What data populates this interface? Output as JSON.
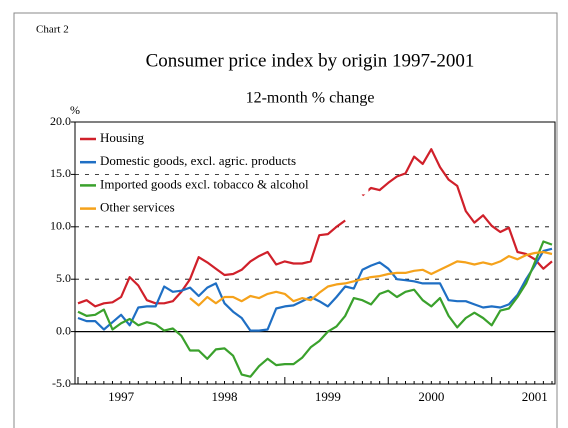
{
  "chart_data": {
    "type": "line",
    "label": "Chart 2",
    "title": "Consumer price index by origin 1997-2001",
    "subtitle": "12-month % change",
    "y_unit": "%",
    "categories": [
      null,
      null,
      null,
      null,
      null,
      "1997",
      null,
      null,
      null,
      null,
      null,
      null,
      null,
      null,
      null,
      null,
      null,
      "1998",
      null,
      null,
      null,
      null,
      null,
      null,
      null,
      null,
      null,
      null,
      null,
      "1999",
      null,
      null,
      null,
      null,
      null,
      null,
      null,
      null,
      null,
      null,
      null,
      "2000",
      null,
      null,
      null,
      null,
      null,
      null,
      null,
      null,
      null,
      null,
      null,
      "2001",
      null,
      null
    ],
    "ylim": [
      -5,
      20
    ],
    "yticks": [
      {
        "value": -5,
        "label": "-5.0"
      },
      {
        "value": 0,
        "label": "0.0"
      },
      {
        "value": 5,
        "label": "5.0"
      },
      {
        "value": 10,
        "label": "10.0"
      },
      {
        "value": 15,
        "label": "15.0"
      },
      {
        "value": 20,
        "label": "20.0"
      }
    ],
    "grid": true,
    "legend": "upper left",
    "series": [
      {
        "name": "Housing",
        "color": "#d0202a",
        "values": [
          2.7,
          3.0,
          2.4,
          2.7,
          2.8,
          3.3,
          5.2,
          4.4,
          3.0,
          2.7,
          2.7,
          2.9,
          3.8,
          5.0,
          7.1,
          6.6,
          6.0,
          5.4,
          5.5,
          5.9,
          6.7,
          7.2,
          7.6,
          6.4,
          6.7,
          6.5,
          6.5,
          6.7,
          9.2,
          9.3,
          10.0,
          10.6,
          null,
          13.0,
          13.7,
          13.5,
          14.2,
          14.8,
          15.1,
          16.7,
          16.0,
          17.4,
          15.7,
          14.5,
          13.9,
          11.5,
          10.4,
          11.1,
          10.1,
          9.5,
          9.9,
          7.6,
          7.4,
          6.9,
          6.0,
          6.7
        ]
      },
      {
        "name": "Domestic goods, excl. agric. products",
        "color": "#1f6fc4",
        "values": [
          1.3,
          1.0,
          1.0,
          0.2,
          0.9,
          1.6,
          0.6,
          2.3,
          2.4,
          2.4,
          4.3,
          3.8,
          3.9,
          4.2,
          3.4,
          4.2,
          4.6,
          2.7,
          1.9,
          1.3,
          0.1,
          0.1,
          0.2,
          2.2,
          2.4,
          2.5,
          2.9,
          3.3,
          2.9,
          2.4,
          3.3,
          4.3,
          4.1,
          5.9,
          6.3,
          6.6,
          6.0,
          5.0,
          4.9,
          4.8,
          4.6,
          4.6,
          4.6,
          3.0,
          2.9,
          2.9,
          2.6,
          2.3,
          2.4,
          2.3,
          2.6,
          3.5,
          5.0,
          6.3,
          7.7,
          7.9
        ]
      },
      {
        "name": "Imported goods excl. tobacco & alcohol",
        "color": "#3aa12c",
        "values": [
          1.9,
          1.5,
          1.6,
          2.1,
          0.2,
          0.8,
          1.2,
          0.6,
          0.9,
          0.7,
          0.1,
          0.3,
          -0.4,
          -1.8,
          -1.8,
          -2.6,
          -1.7,
          -1.6,
          -2.3,
          -4.1,
          -4.3,
          -3.3,
          -2.6,
          -3.2,
          -3.1,
          -3.1,
          -2.5,
          -1.5,
          -0.9,
          0.0,
          0.5,
          1.5,
          3.2,
          3.0,
          2.6,
          3.6,
          3.9,
          3.3,
          3.8,
          4.0,
          3.0,
          2.4,
          3.2,
          1.5,
          0.4,
          1.3,
          1.8,
          1.3,
          0.6,
          2.0,
          2.2,
          3.3,
          4.6,
          6.6,
          8.6,
          8.3
        ]
      },
      {
        "name": "Other services",
        "color": "#f5a21b",
        "values": [
          null,
          null,
          null,
          null,
          null,
          null,
          null,
          null,
          null,
          null,
          null,
          null,
          null,
          3.2,
          2.5,
          3.3,
          2.7,
          3.3,
          3.3,
          2.9,
          3.4,
          3.2,
          3.6,
          3.8,
          3.6,
          2.9,
          3.2,
          3.0,
          3.7,
          4.3,
          4.5,
          4.6,
          4.8,
          5.0,
          5.2,
          5.3,
          5.5,
          5.6,
          5.6,
          5.8,
          5.9,
          5.5,
          5.9,
          6.3,
          6.7,
          6.6,
          6.4,
          6.6,
          6.4,
          6.7,
          7.2,
          6.9,
          7.3,
          7.5,
          7.6,
          7.4
        ]
      }
    ]
  }
}
